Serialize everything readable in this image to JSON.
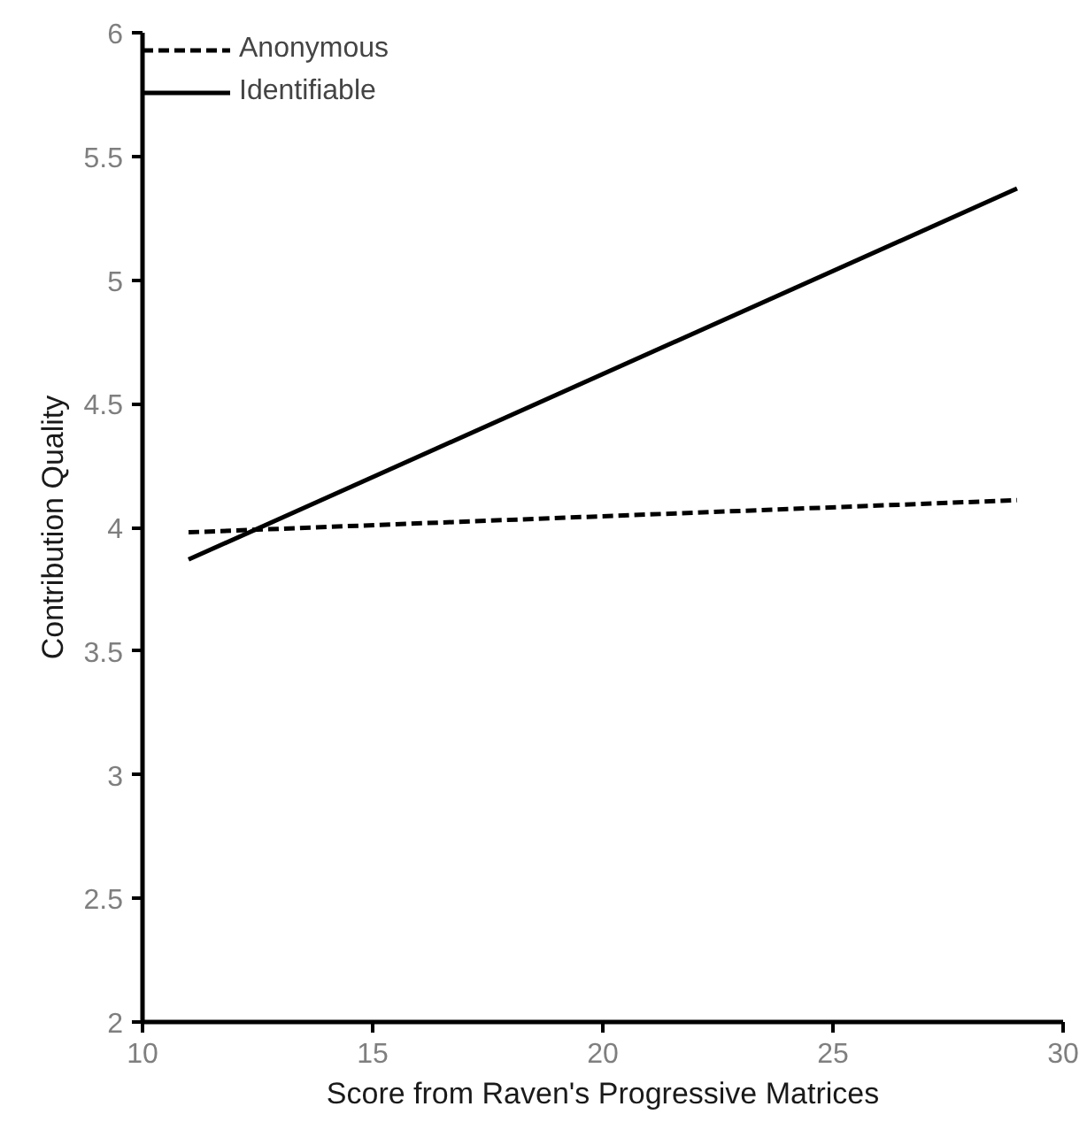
{
  "chart_data": {
    "type": "line",
    "xlabel": "Score from Raven's Progressive Matrices",
    "ylabel": "Contribution Quality",
    "xlim": [
      10,
      30
    ],
    "xticks": [
      10,
      15,
      20,
      25,
      30
    ],
    "ylim": [
      2,
      6
    ],
    "yticks": [
      2,
      2.5,
      3,
      3.5,
      4,
      4.5,
      5,
      5.5,
      6
    ],
    "grid": false,
    "legend": "top left",
    "marker": "none",
    "x": [
      11,
      29
    ],
    "series": [
      {
        "name": "Anonymous",
        "color": "#000000",
        "values": [
          3.98,
          4.11
        ],
        "line_style": "dashed"
      },
      {
        "name": "Identifiable",
        "color": "#000000",
        "values": [
          3.87,
          5.37
        ],
        "line_style": "solid"
      }
    ]
  }
}
